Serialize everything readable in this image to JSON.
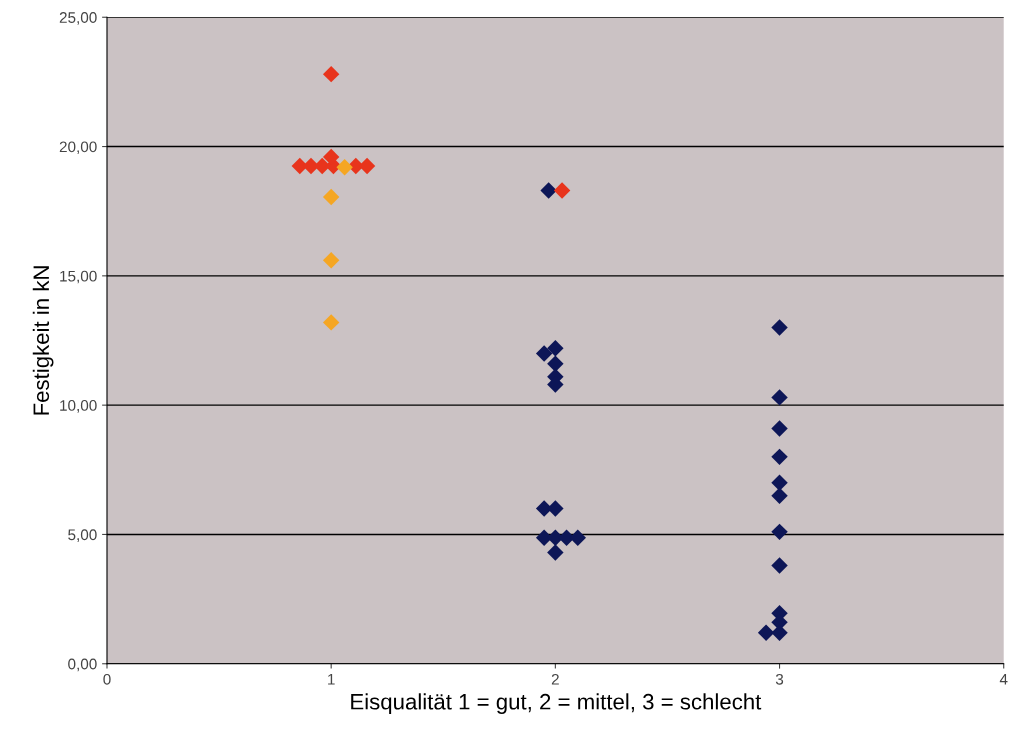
{
  "chart_data": {
    "type": "scatter",
    "xlabel": "Eisqualität 1 = gut, 2 = mittel, 3 = schlecht",
    "ylabel": "Festigkeit in kN",
    "marker": "diamond",
    "grid": "y",
    "legend": false,
    "xlim": [
      0,
      4
    ],
    "xticks": [
      0,
      1,
      2,
      3,
      4
    ],
    "ylim": [
      0,
      25
    ],
    "yticks": [
      {
        "value": 0,
        "label": "0,00"
      },
      {
        "value": 5,
        "label": "5,00"
      },
      {
        "value": 10,
        "label": "10,00"
      },
      {
        "value": 15,
        "label": "15,00"
      },
      {
        "value": 20,
        "label": "20,00"
      },
      {
        "value": 25,
        "label": "25,00"
      }
    ],
    "series": [
      {
        "color": "#0d1657",
        "x": [
          1.97,
          1.95,
          2.0,
          2.0,
          2.0,
          2.0,
          1.95,
          2.0,
          1.95,
          2.0,
          2.05,
          2.1,
          2.0,
          3.0,
          3.0,
          3.0,
          3.0,
          3.0,
          3.0,
          3.0,
          3.0,
          3.0,
          3.0,
          2.94,
          3.0
        ],
        "values": [
          18.3,
          12.0,
          12.2,
          11.6,
          11.1,
          10.8,
          6.0,
          6.0,
          4.87,
          4.87,
          4.87,
          4.87,
          4.3,
          13.0,
          10.3,
          9.1,
          8.0,
          7.0,
          6.5,
          5.1,
          3.8,
          1.95,
          1.6,
          1.2,
          1.2
        ]
      },
      {
        "color": "#f5a623",
        "x": [
          1.0,
          1.0,
          1.0
        ],
        "values": [
          18.05,
          15.6,
          13.2
        ]
      },
      {
        "color": "#e8341c",
        "x": [
          1.0,
          0.86,
          0.91,
          0.96,
          1.01,
          1.11,
          1.16,
          1.0,
          2.03
        ],
        "values": [
          22.8,
          19.25,
          19.25,
          19.25,
          19.25,
          19.25,
          19.25,
          19.6,
          18.3
        ]
      },
      {
        "color": "#f5a623",
        "x": [
          1.06
        ],
        "values": [
          19.2
        ]
      }
    ]
  }
}
